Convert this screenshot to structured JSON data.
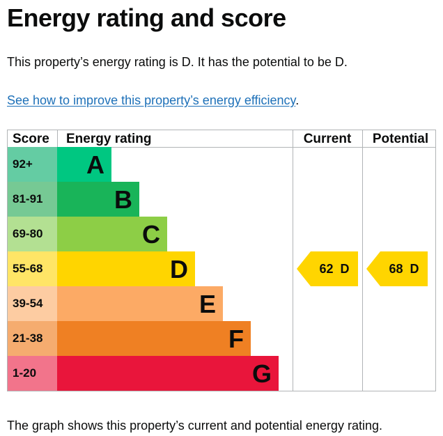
{
  "page": {
    "title": "Energy rating and score",
    "intro": "This property’s energy rating is D. It has the potential to be D.",
    "link_text": "See how to improve this property’s energy efficiency",
    "link_suffix": ".",
    "footer": "The graph shows this property’s current and potential energy rating."
  },
  "chart_data": {
    "type": "bar",
    "headers": {
      "score": "Score",
      "rating": "Energy rating",
      "current": "Current",
      "potential": "Potential"
    },
    "bands": [
      {
        "letter": "A",
        "range": "92+",
        "color": "#00c781",
        "score_color": "#64cca3"
      },
      {
        "letter": "B",
        "range": "81-91",
        "color": "#19b459",
        "score_color": "#76c994"
      },
      {
        "letter": "C",
        "range": "69-80",
        "color": "#8dce46",
        "score_color": "#b3e092"
      },
      {
        "letter": "D",
        "range": "55-68",
        "color": "#ffd500",
        "score_color": "#ffe566"
      },
      {
        "letter": "E",
        "range": "39-54",
        "color": "#fcaa65",
        "score_color": "#fdcca2"
      },
      {
        "letter": "F",
        "range": "21-38",
        "color": "#ef8023",
        "score_color": "#f5ac6f"
      },
      {
        "letter": "G",
        "range": "1-20",
        "color": "#e9153b",
        "score_color": "#f2748b"
      }
    ],
    "current": {
      "score": 62,
      "band": "D",
      "label": "62  D"
    },
    "potential": {
      "score": 68,
      "band": "D",
      "label": "68  D"
    },
    "arrow_color": "#ffd500"
  }
}
